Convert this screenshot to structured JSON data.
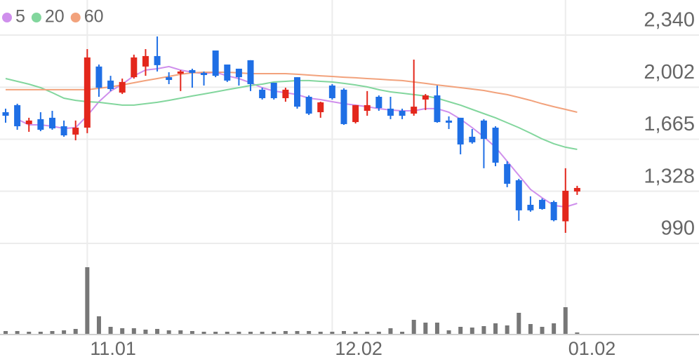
{
  "chart_data": {
    "type": "candlestick",
    "categories": [
      null,
      null,
      null,
      null,
      null,
      null,
      null,
      "11.01",
      null,
      null,
      null,
      null,
      null,
      null,
      null,
      null,
      null,
      null,
      null,
      null,
      null,
      null,
      null,
      null,
      null,
      null,
      null,
      null,
      "12.02",
      null,
      null,
      null,
      null,
      null,
      null,
      null,
      null,
      null,
      null,
      null,
      null,
      null,
      null,
      null,
      null,
      null,
      null,
      null,
      "01.02",
      null
    ],
    "ohlc": [
      [
        1840,
        1863,
        1772,
        1817
      ],
      [
        1886,
        1895,
        1726,
        1749
      ],
      [
        1763,
        1804,
        1713,
        1786
      ],
      [
        1795,
        1840,
        1717,
        1726
      ],
      [
        1804,
        1849,
        1726,
        1735
      ],
      [
        1749,
        1786,
        1681,
        1690
      ],
      [
        1695,
        1786,
        1658,
        1740
      ],
      [
        1740,
        2249,
        1704,
        2195
      ],
      [
        2136,
        2149,
        1940,
        1999
      ],
      [
        2045,
        2076,
        1977,
        1990
      ],
      [
        1967,
        2058,
        1958,
        2036
      ],
      [
        2067,
        2213,
        2058,
        2195
      ],
      [
        2136,
        2249,
        2076,
        2204
      ],
      [
        2204,
        2331,
        2104,
        2145
      ],
      [
        2067,
        2099,
        2022,
        2049
      ],
      [
        2090,
        2113,
        1977,
        2104
      ],
      [
        2113,
        2122,
        1999,
        2095
      ],
      [
        2095,
        2104,
        2013,
        2081
      ],
      [
        2240,
        2240,
        2067,
        2076
      ],
      [
        2149,
        2149,
        2036,
        2045
      ],
      [
        2122,
        2122,
        2013,
        2067
      ],
      [
        2177,
        2177,
        1977,
        2022
      ],
      [
        1986,
        1999,
        1922,
        1931
      ],
      [
        2031,
        2031,
        1922,
        1931
      ],
      [
        1931,
        1999,
        1908,
        1986
      ],
      [
        2067,
        2067,
        1863,
        1876
      ],
      [
        1940,
        1949,
        1822,
        1831
      ],
      [
        1840,
        1908,
        1804,
        1904
      ],
      [
        2013,
        2022,
        1922,
        1931
      ],
      [
        1986,
        1995,
        1758,
        1763
      ],
      [
        1776,
        1886,
        1767,
        1886
      ],
      [
        1849,
        1977,
        1817,
        1886
      ],
      [
        1940,
        1949,
        1849,
        1867
      ],
      [
        1863,
        1940,
        1795,
        1817
      ],
      [
        1849,
        1863,
        1795,
        1817
      ],
      [
        1831,
        2181,
        1817,
        1876
      ],
      [
        1922,
        1958,
        1854,
        1949
      ],
      [
        1949,
        2013,
        1772,
        1776
      ],
      [
        1786,
        1813,
        1731,
        1772
      ],
      [
        1804,
        1804,
        1567,
        1631
      ],
      [
        1681,
        1731,
        1636,
        1645
      ],
      [
        1786,
        1795,
        1477,
        1667
      ],
      [
        1740,
        1749,
        1490,
        1513
      ],
      [
        1504,
        1522,
        1354,
        1376
      ],
      [
        1399,
        1408,
        1137,
        1204
      ],
      [
        1240,
        1295,
        1195,
        1204
      ],
      [
        1272,
        1281,
        1208,
        1213
      ],
      [
        1258,
        1267,
        1133,
        1140
      ],
      [
        1133,
        1477,
        1058,
        1331
      ],
      [
        1326,
        1363,
        1304,
        1349
      ]
    ],
    "up_color": "#e3271c",
    "down_color": "#1f6fe5",
    "series": [
      {
        "name": "5",
        "color": "#cf8fec",
        "values": [
          null,
          1795,
          1758,
          1758,
          1749,
          1735,
          1740,
          1817,
          1908,
          1977,
          2022,
          2076,
          2113,
          2122,
          2136,
          2113,
          2099,
          2090,
          2099,
          2076,
          2058,
          2031,
          1999,
          1977,
          1967,
          1954,
          1931,
          1922,
          1908,
          1895,
          1886,
          1876,
          1863,
          1854,
          1849,
          1849,
          1863,
          1863,
          1840,
          1795,
          1740,
          1681,
          1613,
          1522,
          1431,
          1340,
          1285,
          1236,
          1226,
          1249
        ]
      },
      {
        "name": "20",
        "color": "#82d69d",
        "values": [
          2058,
          2040,
          2022,
          1999,
          1967,
          1931,
          1917,
          1908,
          1904,
          1895,
          1886,
          1886,
          1895,
          1904,
          1917,
          1931,
          1945,
          1958,
          1972,
          1986,
          1999,
          2013,
          2022,
          2036,
          2040,
          2045,
          2045,
          2040,
          2036,
          2027,
          2017,
          2004,
          1986,
          1972,
          1963,
          1954,
          1945,
          1931,
          1908,
          1886,
          1858,
          1831,
          1804,
          1772,
          1740,
          1704,
          1667,
          1636,
          1613,
          1599
        ]
      },
      {
        "name": "60",
        "color": "#f2a27c",
        "values": [
          1986,
          1986,
          1986,
          1986,
          1986,
          1986,
          1986,
          1986,
          1995,
          2004,
          2017,
          2031,
          2045,
          2058,
          2072,
          2086,
          2095,
          2099,
          2099,
          2099,
          2095,
          2090,
          2090,
          2090,
          2090,
          2086,
          2081,
          2076,
          2072,
          2067,
          2063,
          2058,
          2054,
          2049,
          2045,
          2036,
          2027,
          2017,
          2008,
          1999,
          1990,
          1981,
          1967,
          1954,
          1936,
          1917,
          1895,
          1876,
          1858,
          1840
        ]
      }
    ],
    "volume": {
      "color": "#777777",
      "ylim": [
        0,
        100
      ],
      "values": [
        4,
        4,
        3,
        3,
        4,
        5,
        7,
        95,
        25,
        10,
        8,
        8,
        6,
        7,
        5,
        5,
        4,
        3,
        3,
        3,
        3,
        3,
        3,
        3,
        4,
        4,
        4,
        3,
        3,
        4,
        3,
        3,
        3,
        8,
        3,
        20,
        16,
        16,
        5,
        10,
        9,
        11,
        15,
        12,
        30,
        14,
        10,
        15,
        38,
        2
      ]
    },
    "ylim": [
      990,
      2340
    ],
    "yticks": [
      {
        "value": 2340,
        "label": "2,340"
      },
      {
        "value": 2002,
        "label": "2,002"
      },
      {
        "value": 1665,
        "label": "1,665"
      },
      {
        "value": 1328,
        "label": "1,328"
      },
      990
    ],
    "grid": true
  }
}
